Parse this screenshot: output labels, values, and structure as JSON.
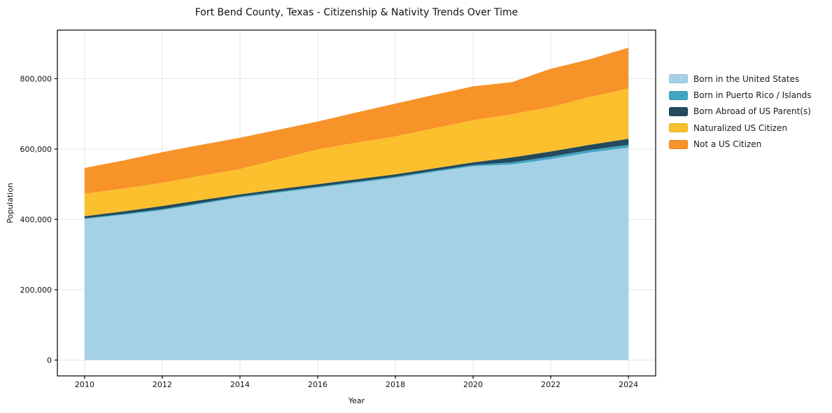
{
  "chart_data": {
    "type": "area",
    "stacked": true,
    "title": "Fort Bend County, Texas - Citizenship & Nativity Trends Over Time",
    "xlabel": "Year",
    "ylabel": "Population",
    "x": [
      2010,
      2011,
      2012,
      2013,
      2014,
      2015,
      2016,
      2017,
      2018,
      2019,
      2020,
      2021,
      2022,
      2023,
      2024
    ],
    "series": [
      {
        "name": "Born in the United States",
        "color": "#a5d1e6",
        "values": [
          401000,
          413000,
          426000,
          444000,
          462000,
          476000,
          490000,
          504000,
          518000,
          535000,
          551000,
          556000,
          571000,
          590000,
          604000
        ]
      },
      {
        "name": "Born in Puerto Rico / Islands",
        "color": "#41a6c4",
        "values": [
          2000,
          2500,
          3000,
          3000,
          3000,
          3000,
          3000,
          3000,
          3000,
          3000,
          3500,
          6000,
          7000,
          7000,
          8000
        ]
      },
      {
        "name": "Born Abroad of US Parent(s)",
        "color": "#234a5d",
        "values": [
          6000,
          7000,
          9000,
          8000,
          6000,
          7000,
          7000,
          7000,
          7000,
          7000,
          7500,
          14000,
          15000,
          15000,
          17000
        ]
      },
      {
        "name": "Naturalized US Citizen",
        "color": "#fcbf2d",
        "values": [
          64000,
          65000,
          66000,
          69000,
          72000,
          85000,
          99000,
          104000,
          108000,
          114000,
          120000,
          123000,
          126000,
          136000,
          143000
        ]
      },
      {
        "name": "Not a US Citizen",
        "color": "#f79329",
        "values": [
          73000,
          80000,
          87000,
          88000,
          89000,
          84000,
          79000,
          86000,
          93000,
          95000,
          96000,
          91000,
          109000,
          107000,
          116000
        ]
      }
    ],
    "x_ticks": [
      2010,
      2012,
      2014,
      2016,
      2018,
      2020,
      2022,
      2024
    ],
    "y_ticks": [
      0,
      200000,
      400000,
      600000,
      800000
    ],
    "y_tick_labels": [
      "0",
      "200,000",
      "400,000",
      "600,000",
      "800,000"
    ],
    "xlim": [
      2009.3,
      2024.7
    ],
    "ylim": [
      -45000,
      938000
    ],
    "grid": true,
    "grid_color": "#e6e6e6",
    "spine_color": "#000000",
    "legend_position": "right"
  }
}
